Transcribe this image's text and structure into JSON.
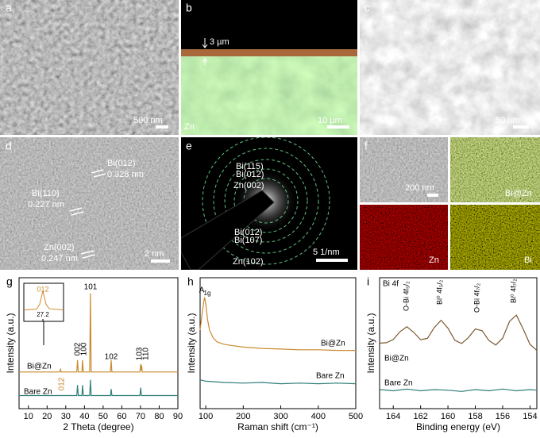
{
  "panels": [
    {
      "label": "a",
      "texts": [
        "500 nm"
      ]
    },
    {
      "label": "b",
      "texts": [
        "3 µm",
        "10 µm",
        "Zn"
      ]
    },
    {
      "label": "c",
      "texts": [
        "50 nm"
      ]
    },
    {
      "label": "d",
      "texts": [
        "Bi(012)",
        "0.328 nm",
        "Bi(110)",
        "0.227 nm",
        "Zn(002)",
        "0.247 nm",
        "2 nm"
      ]
    },
    {
      "label": "e",
      "texts": [
        "Bi(115)",
        "Bi(012)",
        "Zn(002)",
        "Bi(012)",
        "Bi(107)",
        "Zn(102)",
        "5 1/nm"
      ]
    },
    {
      "label": "f",
      "texts": [
        "200 nm",
        "Bi@Zn",
        "Zn",
        "Bi"
      ]
    }
  ],
  "chart_data": [
    {
      "type": "line",
      "label": "g",
      "xlabel": "2 Theta (degree)",
      "ylabel": "Intensity (a.u.)",
      "xlim": [
        5,
        90
      ],
      "ylim": [
        0,
        100
      ],
      "xticks": [
        10,
        20,
        30,
        40,
        50,
        60,
        70,
        80,
        90
      ],
      "series": [
        {
          "name": "Bi@Zn",
          "color": "#c98a2e",
          "x": [
            5,
            26.8,
            27.2,
            27.6,
            35.9,
            36.3,
            36.7,
            38.6,
            39,
            39.4,
            42.8,
            43.2,
            43.6,
            53.9,
            54.3,
            54.7,
            69.7,
            70.1,
            70.4,
            70.6,
            70.9,
            90
          ],
          "values": [
            28,
            28,
            30,
            28,
            28,
            37,
            28,
            28,
            37,
            28,
            28,
            88,
            28,
            28,
            37,
            28,
            28,
            34,
            29,
            33,
            28,
            28
          ]
        },
        {
          "name": "Bare Zn",
          "color": "#2f7f7a",
          "x": [
            5,
            35.9,
            36.3,
            36.7,
            38.6,
            39,
            39.4,
            42.8,
            43.2,
            43.6,
            53.9,
            54.3,
            54.7,
            69.7,
            70.1,
            70.5,
            90
          ],
          "values": [
            10,
            10,
            18,
            10,
            10,
            18,
            10,
            10,
            22,
            10,
            10,
            15,
            10,
            10,
            16,
            10,
            10
          ]
        }
      ],
      "annotations": [
        "101",
        "002",
        "100",
        "102",
        "103",
        "110",
        "012"
      ],
      "inset": {
        "xlim": [
          26,
          28.5
        ],
        "ylim": [
          0,
          10
        ],
        "xticks": [
          27.2
        ],
        "annotation": "012",
        "x": [
          26,
          26.8,
          27,
          27.2,
          27.4,
          27.6,
          28.5
        ],
        "values": [
          3,
          3.2,
          4.5,
          8,
          4.5,
          3.3,
          3
        ]
      }
    },
    {
      "type": "line",
      "label": "h",
      "xlabel": "Raman shift (cm⁻¹)",
      "ylabel": "Intensity (a.u.)",
      "xlim": [
        85,
        500
      ],
      "ylim": [
        0,
        100
      ],
      "xticks": [
        100,
        200,
        300,
        400,
        500
      ],
      "series": [
        {
          "name": "Bi@Zn",
          "color": "#c98a2e",
          "x": [
            85,
            90,
            95,
            97,
            100,
            105,
            110,
            120,
            130,
            150,
            175,
            200,
            250,
            300,
            350,
            400,
            450,
            500
          ],
          "values": [
            60,
            72,
            82,
            85,
            80,
            68,
            60,
            54,
            51,
            49,
            48,
            47,
            46,
            45.5,
            45,
            45,
            44.5,
            44.5
          ]
        },
        {
          "name": "Bare Zn",
          "color": "#2f7f7a",
          "x": [
            85,
            100,
            150,
            200,
            250,
            300,
            350,
            400,
            450,
            500
          ],
          "values": [
            22,
            21,
            20,
            19.5,
            20,
            19,
            19.5,
            19,
            19.5,
            19
          ]
        }
      ],
      "annotations": [
        "A",
        "1g"
      ]
    },
    {
      "type": "line",
      "label": "i",
      "xlabel": "Binding energy (eV)",
      "ylabel": "Intensity (a.u.)",
      "xlim": [
        165,
        153.5
      ],
      "ylim": [
        0,
        110
      ],
      "xticks": [
        164,
        162,
        160,
        158,
        156,
        154
      ],
      "series": [
        {
          "name": "Bi@Zn",
          "color": "#7a5a30",
          "x": [
            165,
            164.5,
            164,
            163.5,
            163,
            162.5,
            162,
            161.5,
            161,
            160.5,
            160,
            159.5,
            159,
            158.5,
            158,
            157.5,
            157,
            156.5,
            156,
            155.5,
            155,
            154.5,
            154,
            153.5
          ],
          "values": [
            55,
            55.4,
            58.1,
            64.7,
            68.8,
            64.1,
            57.9,
            59.1,
            68.2,
            74.3,
            67.6,
            57.5,
            54.7,
            59.7,
            66.9,
            65.5,
            57.2,
            53.5,
            59.3,
            73.3,
            78.6,
            66.9,
            54,
            48.9
          ]
        },
        {
          "name": "Bare Zn",
          "color": "#2f7f7a",
          "x": [
            165,
            164,
            163,
            162,
            161,
            160,
            159,
            158,
            157,
            156,
            155,
            154,
            153.5
          ],
          "values": [
            16,
            15,
            16.5,
            15,
            16,
            15.5,
            14.5,
            16,
            15,
            16.5,
            15,
            16,
            15.5
          ]
        }
      ],
      "annotations": [
        "Bi 4f",
        "O-Bi 4f₅/₂",
        "Bi⁰ 4f₅/₂",
        "O-Bi 4f₇/₂",
        "Bi⁰ 4f₇/₂"
      ]
    }
  ]
}
